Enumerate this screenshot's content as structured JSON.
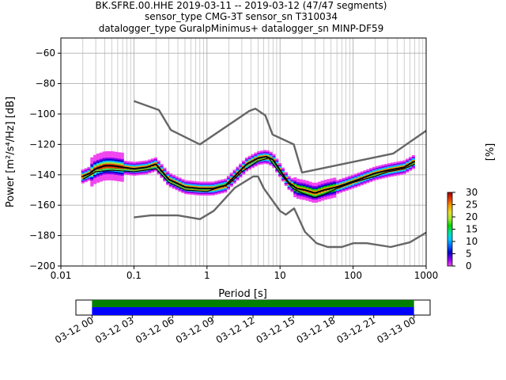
{
  "header": {
    "line1": "BK.SFRE.00.HHE   2019-03-11 -- 2019-03-12  (47/47 segments)",
    "line2": "sensor_type CMG-3T sensor_sn T310034",
    "line3": "datalogger_type GuralpMinimus+ datalogger_sn MINP-DF59"
  },
  "chart_data": [
    {
      "type": "heatmap",
      "title": "",
      "xlabel": "Period [s]",
      "ylabel": "Power [m²/s⁴/Hz] [dB]",
      "x_scale": "log",
      "xlim": [
        0.01,
        1000
      ],
      "ylim": [
        -200,
        -50
      ],
      "x_ticks": [
        0.01,
        0.1,
        1,
        10,
        100,
        1000
      ],
      "x_tick_labels": [
        "0.01",
        "0.1",
        "1",
        "10",
        "100",
        "1000"
      ],
      "y_ticks": [
        -200,
        -180,
        -160,
        -140,
        -120,
        -100,
        -80,
        -60
      ],
      "y_tick_labels": [
        "−200",
        "−180",
        "−160",
        "−140",
        "−120",
        "−100",
        "−80",
        "−60"
      ],
      "grid": true,
      "colorbar": {
        "label": "[%]",
        "min": 0,
        "max": 30,
        "ticks": [
          0,
          5,
          10,
          15,
          20,
          25,
          30
        ],
        "tick_labels": [
          "0",
          "5",
          "10",
          "15",
          "20",
          "25",
          "30"
        ],
        "colormap": [
          "#ffffff",
          "#f046f0",
          "#8c00f0",
          "#0000c8",
          "#0064ff",
          "#00c8ff",
          "#00e5a0",
          "#00d200",
          "#a0e632",
          "#e6dc32",
          "#f0a000",
          "#e63c00",
          "#960000"
        ]
      },
      "series": [
        {
          "role": "median",
          "color": "#000000",
          "x": [
            0.02,
            0.025,
            0.03,
            0.04,
            0.05,
            0.07,
            0.1,
            0.15,
            0.2,
            0.3,
            0.5,
            0.8,
            1.2,
            1.8,
            2.5,
            3.5,
            5,
            6.5,
            8,
            10,
            13,
            17,
            22,
            30,
            40,
            60,
            80,
            120,
            200,
            300,
            500,
            700
          ],
          "y": [
            -141,
            -139,
            -136,
            -134,
            -134,
            -135,
            -136,
            -135,
            -133,
            -143,
            -148,
            -149,
            -149,
            -147,
            -140,
            -133,
            -129,
            -128,
            -130,
            -137,
            -145,
            -149,
            -150,
            -152,
            -150,
            -148,
            -146,
            -143,
            -139,
            -137,
            -135,
            -131
          ]
        },
        {
          "role": "mode",
          "color": "#2ecc40",
          "x": [
            0.02,
            0.03,
            0.05,
            0.1,
            0.2,
            0.3,
            0.5,
            1,
            2,
            3,
            5,
            7,
            10,
            15,
            20,
            30,
            40,
            60,
            100,
            200,
            300,
            500,
            700
          ],
          "y": [
            -142,
            -137,
            -136,
            -137,
            -135,
            -144,
            -149,
            -150,
            -145,
            -136,
            -130,
            -128,
            -138,
            -148,
            -151,
            -154,
            -152,
            -148,
            -144,
            -140,
            -137,
            -135,
            -132
          ]
        },
        {
          "role": "minimum",
          "color": "#000000",
          "x": [
            0.02,
            0.03,
            0.05,
            0.1,
            0.2,
            0.3,
            0.5,
            1,
            2,
            3,
            5,
            7,
            10,
            15,
            20,
            30,
            40,
            60,
            100,
            200,
            300,
            500,
            700
          ],
          "y": [
            -143,
            -138,
            -137,
            -138,
            -136,
            -145,
            -150,
            -151,
            -146,
            -138,
            -131,
            -129,
            -139,
            -149,
            -152,
            -155,
            -153,
            -149,
            -145,
            -141,
            -138,
            -136,
            -133
          ]
        },
        {
          "role": "NHNM",
          "color": "#666666",
          "x": [
            0.1,
            0.22,
            0.32,
            0.8,
            3.8,
            4.6,
            6.3,
            7.9,
            15.4,
            20,
            354.8,
            1000
          ],
          "y": [
            -91.5,
            -97.4,
            -110.5,
            -120,
            -98,
            -96.5,
            -101,
            -113.5,
            -120,
            -138.5,
            -126,
            -111
          ]
        },
        {
          "role": "NLNM",
          "color": "#666666",
          "x": [
            0.1,
            0.17,
            0.4,
            0.8,
            1.24,
            2.4,
            4.3,
            5,
            6,
            10,
            12,
            15.6,
            21.9,
            31.6,
            45,
            70,
            101,
            154,
            328,
            600,
            1000
          ],
          "y": [
            -168,
            -166.7,
            -166.7,
            -169.2,
            -163.7,
            -148.6,
            -141.1,
            -141.1,
            -149,
            -163.8,
            -166.2,
            -162.1,
            -177.5,
            -185,
            -187.5,
            -187.5,
            -185,
            -185,
            -187.5,
            -184.4,
            -178
          ]
        }
      ]
    },
    {
      "type": "bar",
      "title": "",
      "x_tick_labels": [
        "03-12 00",
        "03-12 03",
        "03-12 06",
        "03-12 09",
        "03-12 12",
        "03-12 15",
        "03-12 18",
        "03-12 21",
        "03-13 00"
      ],
      "xlim_hours": [
        -1.2,
        25.2
      ],
      "coverage_hours": [
        0,
        24
      ],
      "data_color": "#0000ff",
      "gap_fill_color": "#008000"
    }
  ]
}
